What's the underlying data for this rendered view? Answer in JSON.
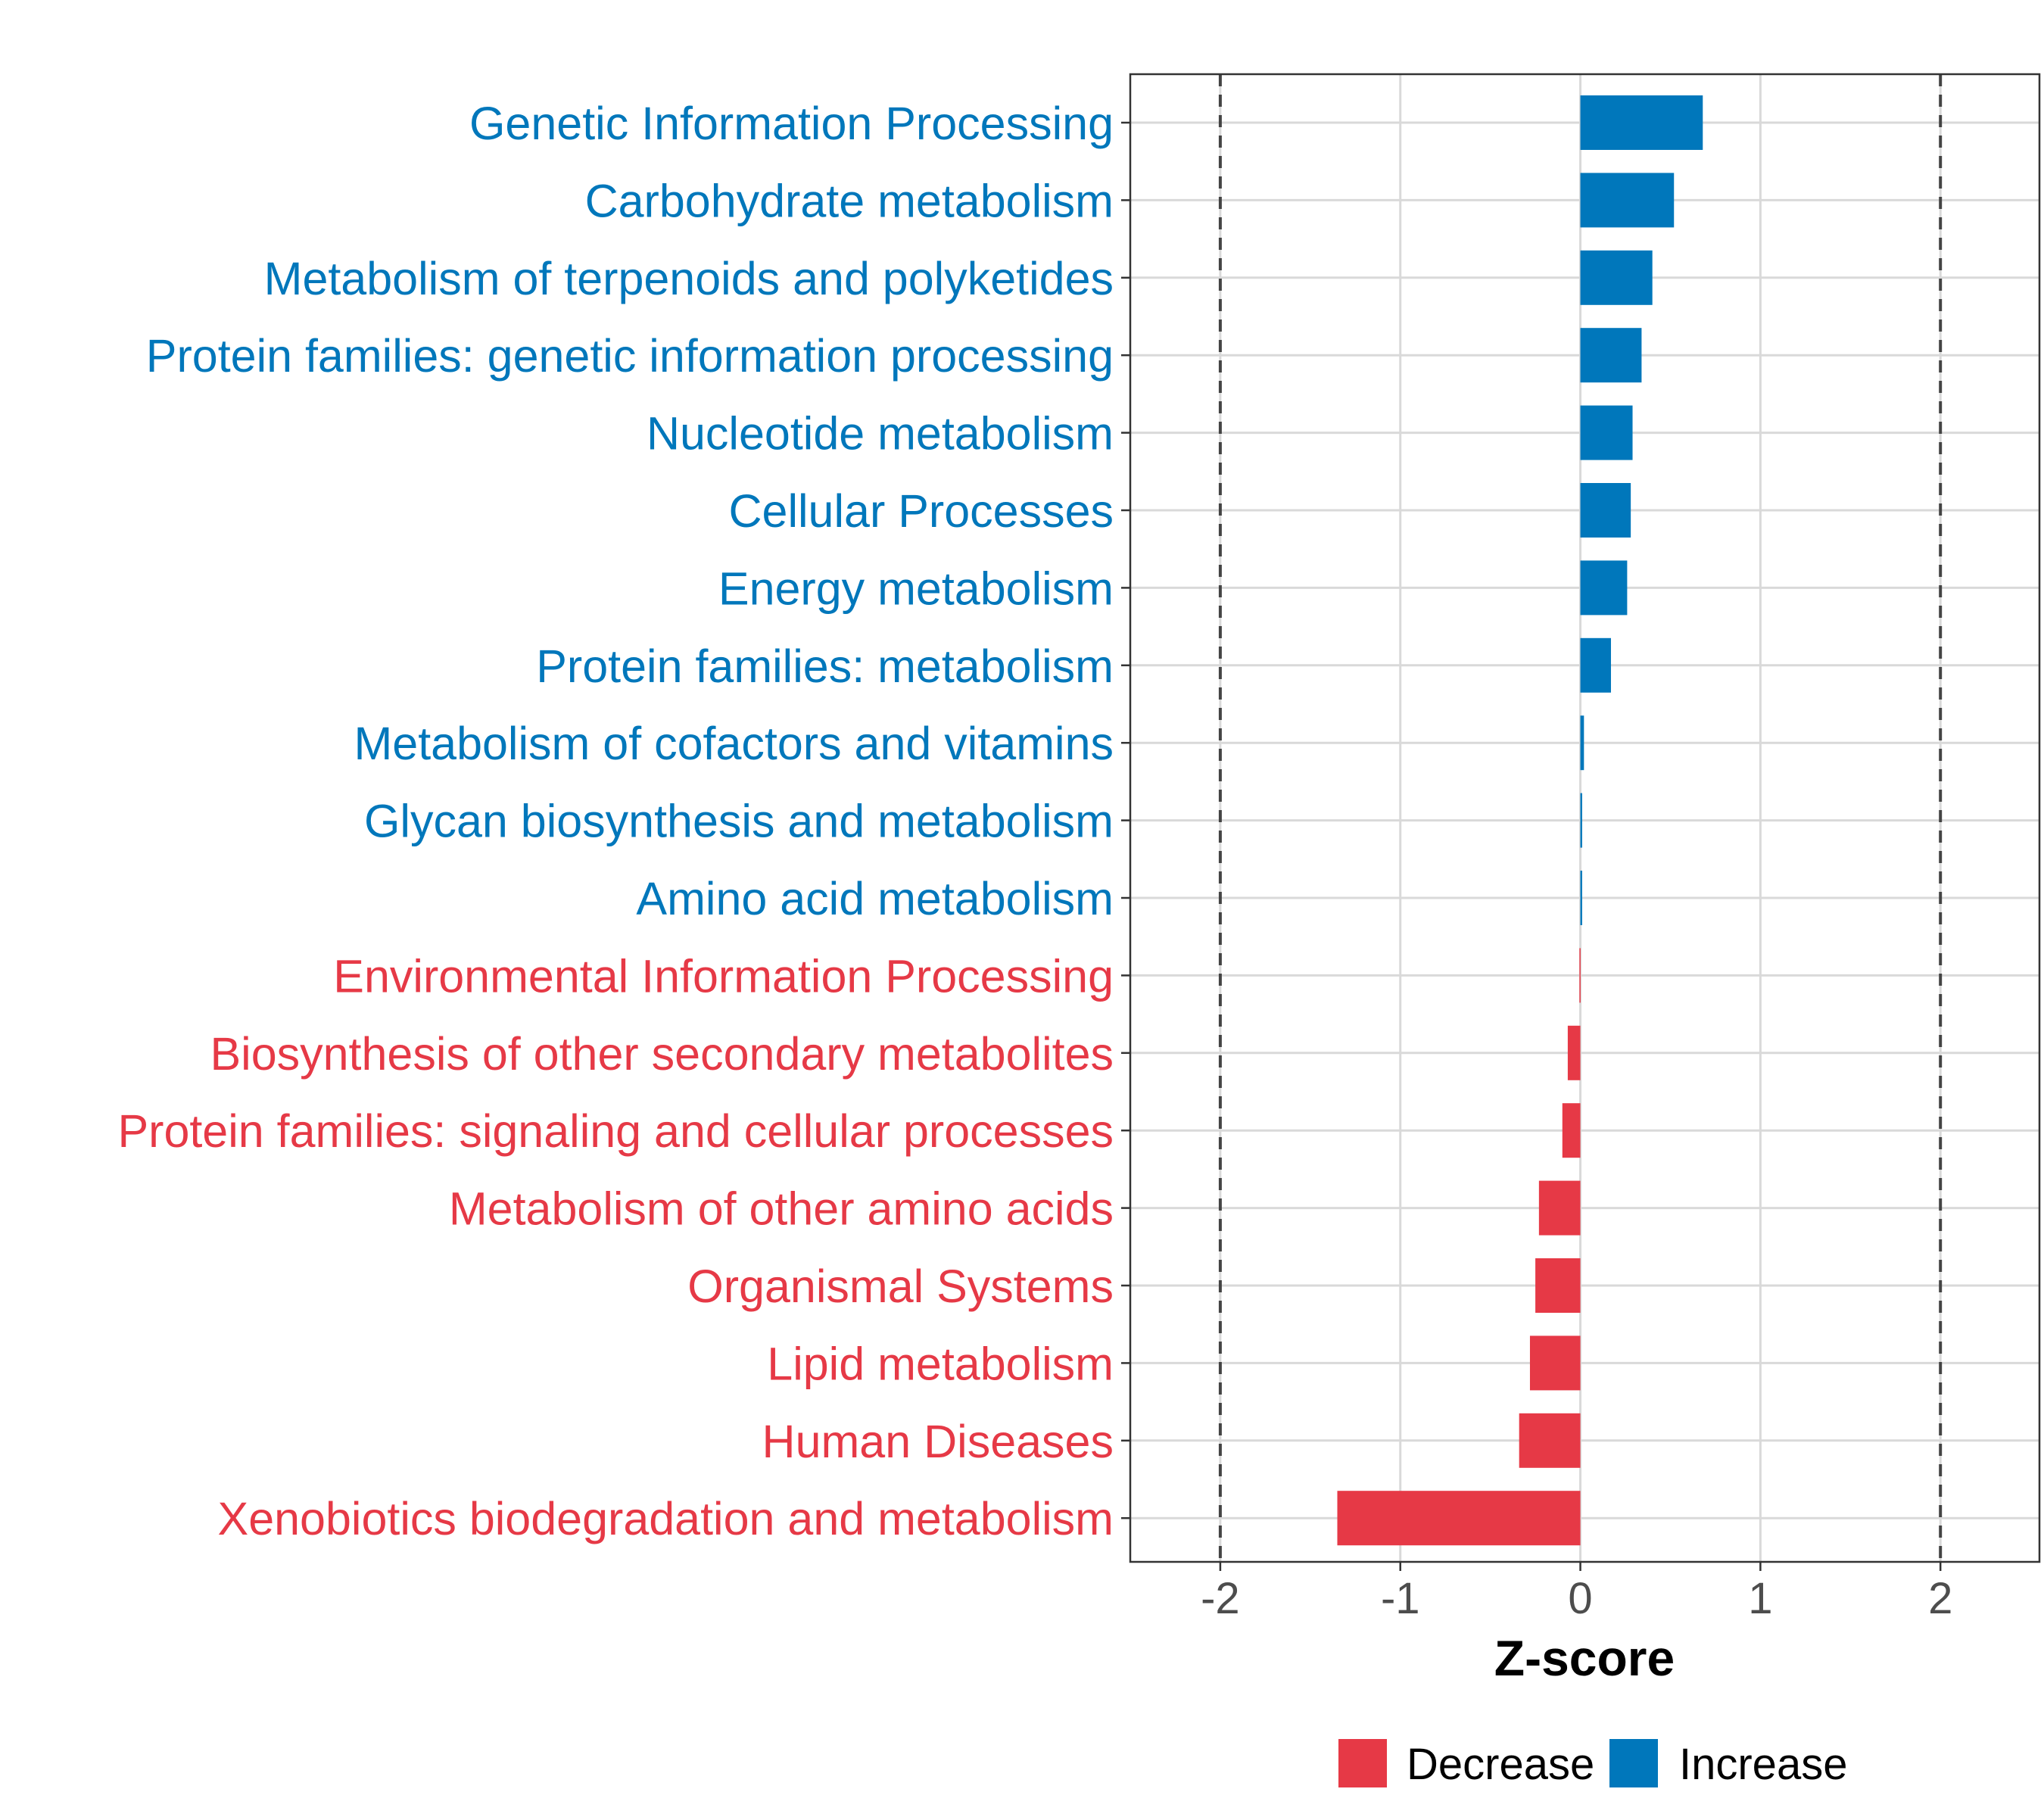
{
  "colors": {
    "decrease": "#E63946",
    "increase": "#0077BB",
    "grid": "#D9D9D9",
    "axis": "#333333",
    "reference_line": "#444444",
    "tick_text": "#4D4D4D",
    "title_text": "#000000"
  },
  "chart_data": {
    "type": "bar",
    "orientation": "horizontal",
    "title": "",
    "xlabel": "Z-score",
    "ylabel": "",
    "xlim": [
      -2.5,
      2.55
    ],
    "x_ticks": [
      -2,
      -1,
      0,
      1,
      2
    ],
    "x_tick_labels": [
      "-2",
      "-1",
      "0",
      "1",
      "2"
    ],
    "reference_lines": [
      -2,
      2
    ],
    "grid": true,
    "legend": {
      "position": "bottom",
      "entries": [
        {
          "label": "Decrease",
          "group": "decrease"
        },
        {
          "label": "Increase",
          "group": "increase"
        }
      ]
    },
    "categories": [
      "Genetic Information Processing",
      "Carbohydrate metabolism",
      "Metabolism of terpenoids and polyketides",
      "Protein families: genetic information processing",
      "Nucleotide metabolism",
      "Cellular Processes",
      "Energy metabolism",
      "Protein families: metabolism",
      "Metabolism of cofactors and vitamins",
      "Glycan biosynthesis and metabolism",
      "Amino acid metabolism",
      "Environmental Information Processing",
      "Biosynthesis of other secondary metabolites",
      "Protein families: signaling and cellular processes",
      "Metabolism of other amino acids",
      "Organismal Systems",
      "Lipid metabolism",
      "Human Diseases",
      "Xenobiotics biodegradation and metabolism"
    ],
    "values": [
      0.68,
      0.52,
      0.4,
      0.34,
      0.29,
      0.28,
      0.26,
      0.17,
      0.02,
      0.01,
      0.01,
      -0.005,
      -0.07,
      -0.1,
      -0.23,
      -0.25,
      -0.28,
      -0.34,
      -1.35
    ],
    "groups": [
      "increase",
      "increase",
      "increase",
      "increase",
      "increase",
      "increase",
      "increase",
      "increase",
      "increase",
      "increase",
      "increase",
      "decrease",
      "decrease",
      "decrease",
      "decrease",
      "decrease",
      "decrease",
      "decrease",
      "decrease"
    ]
  }
}
